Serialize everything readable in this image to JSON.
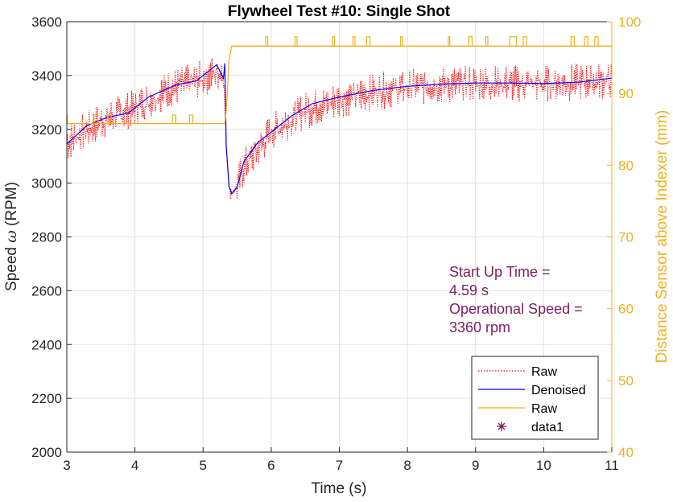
{
  "chart_data": {
    "type": "line",
    "title": "Flywheel Test #10: Single Shot",
    "xlabel": "Time (s)",
    "ylabel_left_prefix": "Speed ",
    "ylabel_left_symbol": "ω",
    "ylabel_left_suffix": " (RPM)",
    "ylabel_right": "Distance Sensor above Indexer (mm)",
    "xlim": [
      3,
      11
    ],
    "ylim_left": [
      2000,
      3600
    ],
    "ylim_right": [
      40,
      100
    ],
    "xticks": [
      3,
      4,
      5,
      6,
      7,
      8,
      9,
      10,
      11
    ],
    "yticks_left": [
      2000,
      2200,
      2400,
      2600,
      2800,
      3000,
      3200,
      3400,
      3600
    ],
    "yticks_right": [
      40,
      50,
      60,
      70,
      80,
      90,
      100
    ],
    "grid": true,
    "legend_location": "bottom-right",
    "colors": {
      "raw_speed": "#ff0000",
      "denoised": "#0000ff",
      "raw_distance": "#edb120",
      "annotation": "#7e1e5c",
      "axis_left": "#262626",
      "axis_right": "#edb120",
      "grid": "#e0e0e0"
    },
    "series": [
      {
        "name": "Raw",
        "axis": "left",
        "style": "dotted",
        "x": [
          3.0,
          3.5,
          4.0,
          4.5,
          5.0,
          5.3,
          5.34,
          5.4,
          5.5,
          5.6,
          6.0,
          6.5,
          7.0,
          7.5,
          8.0,
          8.5,
          9.0,
          9.5,
          10.0,
          10.5,
          11.0
        ],
        "y": [
          3150,
          3230,
          3280,
          3350,
          3390,
          3420,
          3130,
          2960,
          2990,
          3060,
          3190,
          3270,
          3310,
          3340,
          3355,
          3365,
          3370,
          3370,
          3370,
          3375,
          3380
        ]
      },
      {
        "name": "Denoised",
        "axis": "left",
        "style": "solid",
        "x": [
          3.0,
          3.3,
          3.6,
          3.9,
          4.2,
          4.6,
          4.9,
          5.1,
          5.2,
          5.3,
          5.32,
          5.34,
          5.38,
          5.42,
          5.5,
          5.6,
          5.8,
          6.0,
          6.3,
          6.6,
          7.0,
          7.5,
          8.0,
          8.5,
          9.0,
          9.5,
          10.0,
          10.5,
          11.0
        ],
        "y": [
          3145,
          3215,
          3245,
          3260,
          3320,
          3365,
          3380,
          3420,
          3440,
          3390,
          3445,
          3140,
          2990,
          2960,
          2985,
          3080,
          3150,
          3190,
          3250,
          3295,
          3320,
          3345,
          3360,
          3368,
          3372,
          3372,
          3370,
          3375,
          3390
        ]
      },
      {
        "name": "Raw",
        "axis": "right",
        "style": "solid",
        "x": [
          3.0,
          5.32,
          5.34,
          5.38,
          5.42,
          11.0
        ],
        "y": [
          85.8,
          85.8,
          87.5,
          94.5,
          96.6,
          96.6
        ]
      }
    ],
    "legend_entries": [
      {
        "label": "Raw",
        "marker": "line-dotted",
        "color": "#ff0000"
      },
      {
        "label": "Denoised",
        "marker": "line-solid",
        "color": "#0000ff"
      },
      {
        "label": "Raw",
        "marker": "line-solid",
        "color": "#edb120"
      },
      {
        "label": "data1",
        "marker": "asterisk",
        "color": "#7e1e5c"
      }
    ],
    "annotations": [
      {
        "lines": [
          "Start Up Time =",
          "4.59 s",
          "Operational Speed =",
          "3360 rpm"
        ],
        "x": 8.6,
        "y": 2700,
        "color": "#7e1e5c"
      }
    ]
  }
}
